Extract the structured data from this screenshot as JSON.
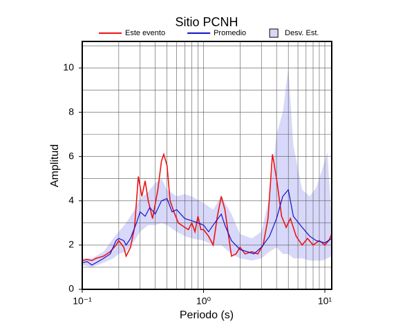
{
  "chart_data": {
    "type": "line",
    "title": "Sitio PCNH",
    "x_label": "Periodo (s)",
    "y_label": "Amplitud",
    "log_x": true,
    "grid": true,
    "legend": "top",
    "xlim": [
      0.1,
      11.4
    ],
    "ylim": [
      0,
      11.2
    ],
    "xticks": [
      {
        "value": 0.1,
        "label": "10⁻¹"
      },
      {
        "value": 1,
        "label": "10⁰"
      },
      {
        "value": 10,
        "label": "10¹"
      }
    ],
    "xminor": [
      0.2,
      0.3,
      0.4,
      0.5,
      0.6,
      0.7,
      0.8,
      0.9,
      2,
      3,
      4,
      5,
      6,
      7,
      8,
      9
    ],
    "yticks": [
      0,
      2,
      4,
      6,
      8,
      10
    ],
    "yminor": [
      1,
      3,
      5,
      7,
      9,
      11
    ],
    "band": {
      "name": "Desv. Est.",
      "color": "#d8d8fa",
      "x": [
        0.1,
        0.12,
        0.15,
        0.18,
        0.2,
        0.23,
        0.27,
        0.3,
        0.35,
        0.4,
        0.45,
        0.5,
        0.6,
        0.7,
        0.8,
        1.0,
        1.2,
        1.4,
        1.7,
        2.0,
        2.5,
        3.0,
        3.5,
        4.0,
        4.5,
        5.0,
        5.5,
        6.5,
        7.5,
        8.5,
        9.5,
        10.5,
        11.4
      ],
      "lower": [
        1.1,
        1.0,
        1.2,
        1.4,
        1.6,
        1.7,
        2.2,
        2.6,
        2.9,
        2.9,
        3.0,
        2.9,
        2.6,
        2.4,
        2.3,
        2.2,
        2.0,
        2.0,
        1.6,
        1.4,
        1.3,
        1.4,
        1.7,
        1.9,
        1.6,
        1.6,
        1.4,
        1.4,
        1.3,
        1.3,
        1.3,
        1.4,
        1.5
      ],
      "upper": [
        1.4,
        1.4,
        1.7,
        2.3,
        2.6,
        3.0,
        3.6,
        4.1,
        4.4,
        4.8,
        5.0,
        4.5,
        4.2,
        4.3,
        4.2,
        3.9,
        3.6,
        4.2,
        3.4,
        2.5,
        2.3,
        2.6,
        4.2,
        7.0,
        8.0,
        10.0,
        6.5,
        4.5,
        4.2,
        4.6,
        5.4,
        6.2,
        3.0
      ]
    },
    "series": [
      {
        "name": "Este evento",
        "color": "#ee1111",
        "x": [
          0.1,
          0.11,
          0.12,
          0.13,
          0.15,
          0.17,
          0.19,
          0.2,
          0.22,
          0.23,
          0.25,
          0.27,
          0.29,
          0.31,
          0.33,
          0.35,
          0.38,
          0.42,
          0.45,
          0.47,
          0.5,
          0.53,
          0.57,
          0.62,
          0.7,
          0.75,
          0.8,
          0.85,
          0.9,
          0.95,
          1.0,
          1.1,
          1.2,
          1.3,
          1.4,
          1.5,
          1.6,
          1.7,
          1.85,
          2.0,
          2.2,
          2.5,
          2.8,
          3.1,
          3.4,
          3.7,
          4.0,
          4.4,
          4.8,
          5.2,
          5.8,
          6.5,
          7.2,
          8.0,
          9.0,
          10,
          10.8,
          11.4
        ],
        "values": [
          1.3,
          1.35,
          1.3,
          1.4,
          1.5,
          1.7,
          2.0,
          2.2,
          1.9,
          1.5,
          1.9,
          2.8,
          5.1,
          4.2,
          4.9,
          4.0,
          3.2,
          4.5,
          5.8,
          6.1,
          5.6,
          4.0,
          3.5,
          3.0,
          2.8,
          2.7,
          3.0,
          2.6,
          3.3,
          2.7,
          2.7,
          2.4,
          2.0,
          3.3,
          4.2,
          3.6,
          2.5,
          1.5,
          1.6,
          1.9,
          1.6,
          1.7,
          1.6,
          2.0,
          3.2,
          6.1,
          5.0,
          3.3,
          2.8,
          3.2,
          2.4,
          2.0,
          2.3,
          2.0,
          2.2,
          2.0,
          2.2,
          2.5
        ]
      },
      {
        "name": "Promedio",
        "color": "#1111cc",
        "x": [
          0.1,
          0.11,
          0.12,
          0.13,
          0.15,
          0.17,
          0.19,
          0.2,
          0.22,
          0.23,
          0.25,
          0.28,
          0.3,
          0.33,
          0.36,
          0.4,
          0.45,
          0.5,
          0.55,
          0.6,
          0.7,
          0.8,
          0.9,
          1.0,
          1.1,
          1.2,
          1.4,
          1.5,
          1.7,
          2.0,
          2.3,
          2.6,
          3.0,
          3.5,
          4.0,
          4.5,
          5.0,
          5.5,
          6.5,
          7.5,
          8.5,
          10,
          11.4
        ],
        "values": [
          1.2,
          1.25,
          1.1,
          1.2,
          1.4,
          1.6,
          2.2,
          2.3,
          2.2,
          2.0,
          2.3,
          3.0,
          3.5,
          3.3,
          3.7,
          3.4,
          4.0,
          4.1,
          3.5,
          3.6,
          3.2,
          3.1,
          3.0,
          2.9,
          2.6,
          2.9,
          3.4,
          2.9,
          2.2,
          1.8,
          1.7,
          1.6,
          1.9,
          2.4,
          3.2,
          4.2,
          4.5,
          3.3,
          2.8,
          2.4,
          2.2,
          2.1,
          2.3
        ]
      }
    ]
  }
}
